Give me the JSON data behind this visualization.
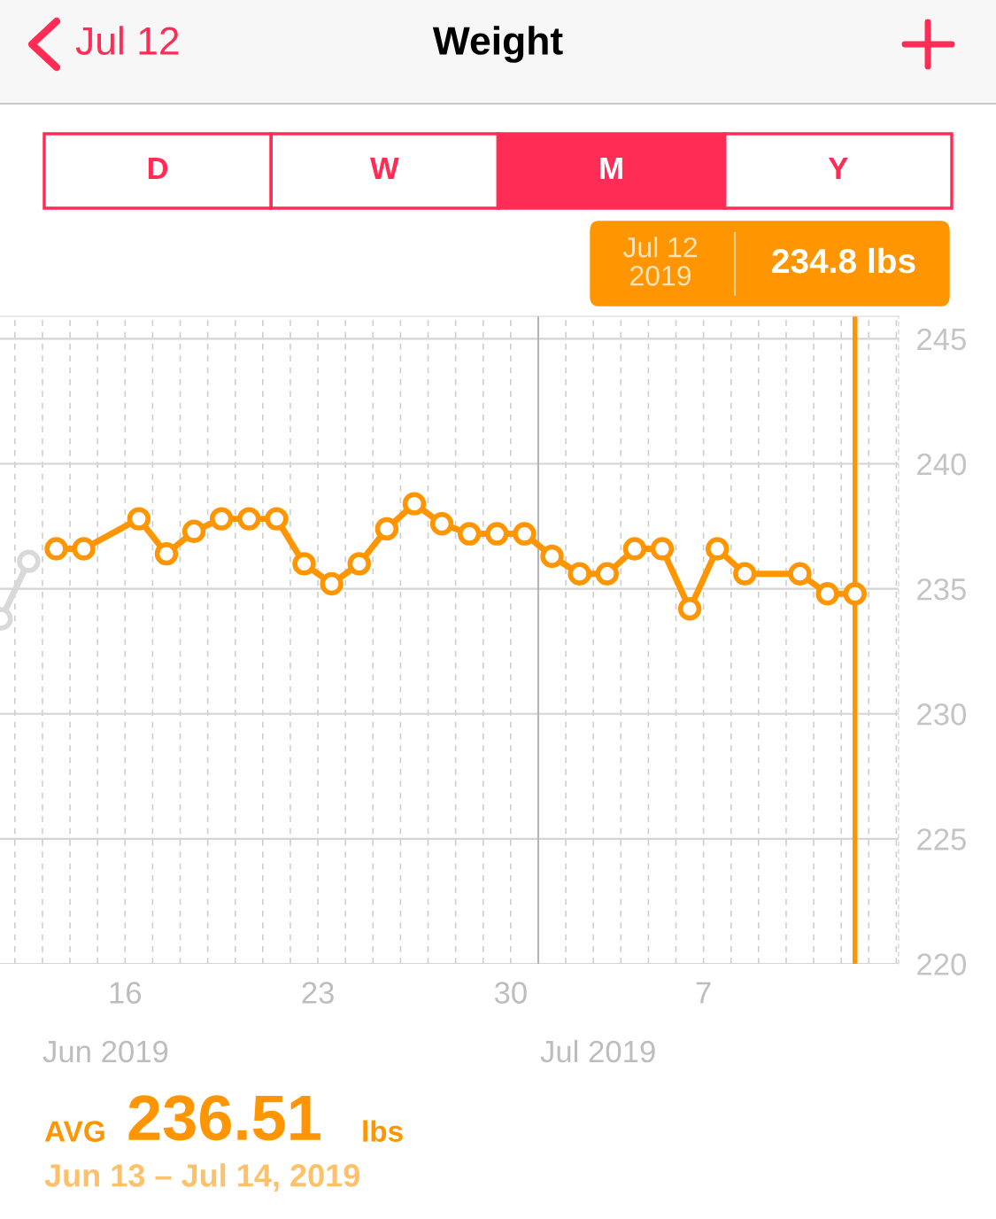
{
  "chart_data": {
    "type": "line",
    "title": "Weight",
    "series": [
      {
        "color": "#d9d9d9",
        "x": [
          "2019-06-11T12:00",
          "2019-06-12T12:00"
        ],
        "values": [
          233.8,
          236.1
        ]
      },
      {
        "color": "#ff9500",
        "x": [
          "2019-06-13T12:00",
          "2019-06-14T12:00",
          "2019-06-16T12:00",
          "2019-06-17T12:00",
          "2019-06-18T12:00",
          "2019-06-19T12:00",
          "2019-06-20T12:00",
          "2019-06-21T12:00",
          "2019-06-22T12:00",
          "2019-06-23T12:00",
          "2019-06-24T12:00",
          "2019-06-25T12:00",
          "2019-06-26T12:00",
          "2019-06-27T12:00",
          "2019-06-28T12:00",
          "2019-06-29T12:00",
          "2019-06-30T12:00",
          "2019-07-01T12:00",
          "2019-07-02T12:00",
          "2019-07-03T12:00",
          "2019-07-04T12:00",
          "2019-07-05T12:00",
          "2019-07-06T12:00",
          "2019-07-07T12:00",
          "2019-07-08T12:00",
          "2019-07-10T12:00",
          "2019-07-11T12:00",
          "2019-07-12T12:00"
        ],
        "values": [
          236.6,
          236.6,
          237.8,
          236.4,
          237.3,
          237.8,
          237.8,
          237.8,
          236.0,
          235.2,
          236.0,
          237.4,
          238.4,
          237.6,
          237.2,
          237.2,
          237.2,
          236.3,
          235.6,
          235.6,
          236.6,
          236.6,
          234.2,
          236.6,
          235.6,
          235.6,
          234.8,
          234.8
        ]
      }
    ],
    "xlim": [
      "2019-06-11T11:00",
      "2019-07-14T02:00"
    ],
    "xticks": [
      {
        "value": "2019-06-12",
        "label": null
      },
      {
        "value": "2019-06-13",
        "label": null
      },
      {
        "value": "2019-06-14",
        "label": null
      },
      {
        "value": "2019-06-15",
        "label": null
      },
      {
        "value": "2019-06-16",
        "label": "16"
      },
      {
        "value": "2019-06-17",
        "label": null
      },
      {
        "value": "2019-06-18",
        "label": null
      },
      {
        "value": "2019-06-19",
        "label": null
      },
      {
        "value": "2019-06-20",
        "label": null
      },
      {
        "value": "2019-06-21",
        "label": null
      },
      {
        "value": "2019-06-22",
        "label": null
      },
      {
        "value": "2019-06-23",
        "label": "23"
      },
      {
        "value": "2019-06-24",
        "label": null
      },
      {
        "value": "2019-06-25",
        "label": null
      },
      {
        "value": "2019-06-26",
        "label": null
      },
      {
        "value": "2019-06-27",
        "label": null
      },
      {
        "value": "2019-06-28",
        "label": null
      },
      {
        "value": "2019-06-29",
        "label": null
      },
      {
        "value": "2019-06-30",
        "label": "30"
      },
      {
        "value": "2019-07-02",
        "label": null
      },
      {
        "value": "2019-07-03",
        "label": null
      },
      {
        "value": "2019-07-04",
        "label": null
      },
      {
        "value": "2019-07-05",
        "label": null
      },
      {
        "value": "2019-07-06",
        "label": null
      },
      {
        "value": "2019-07-07",
        "label": "7"
      },
      {
        "value": "2019-07-08",
        "label": null
      },
      {
        "value": "2019-07-09",
        "label": null
      },
      {
        "value": "2019-07-10",
        "label": null
      },
      {
        "value": "2019-07-11",
        "label": null
      },
      {
        "value": "2019-07-12",
        "label": null
      },
      {
        "value": "2019-07-13",
        "label": null
      },
      {
        "value": "2019-07-14",
        "label": null
      }
    ],
    "ylim": [
      220,
      245.9
    ],
    "yticks": [
      220,
      225,
      230,
      235,
      240,
      245
    ],
    "grid": true,
    "marker": "circle",
    "line_style": "solid",
    "legend": false,
    "ref_lines": [
      {
        "axis": "x",
        "value": "2019-07-01",
        "color": "#b4b4b4",
        "line_style": "solid"
      },
      {
        "axis": "x",
        "value": "2019-07-12T12:00",
        "color": "#ff9500",
        "line_style": "solid"
      }
    ],
    "annotations": [
      "Jul 12\n2019",
      "234.8 lbs",
      "Jul 12",
      "D",
      "W",
      "M",
      "Y",
      "Jun 2019",
      "Jul 2019",
      "AVG",
      "236.51",
      "lbs",
      "Jun 13 – Jul 14, 2019"
    ]
  }
}
